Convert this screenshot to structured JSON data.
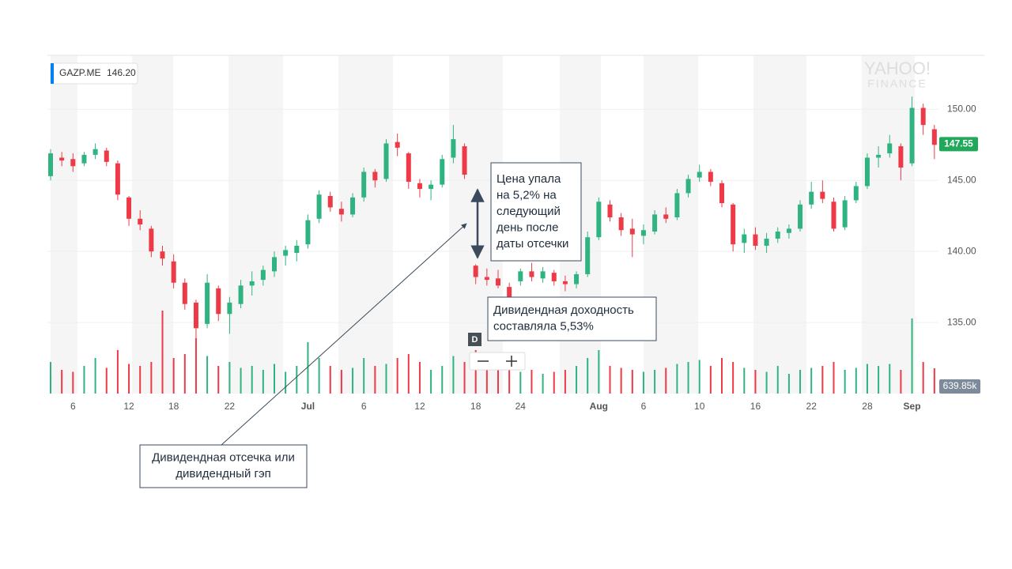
{
  "chart_data": {
    "type": "candlestick",
    "symbol": "GAZP.ME",
    "symbol_value": "146.20",
    "watermark": [
      "YAHOO!",
      "FINANCE"
    ],
    "dividend_marker": "D",
    "categories": [
      null,
      null,
      "6",
      null,
      null,
      null,
      null,
      "12",
      null,
      null,
      null,
      "18",
      null,
      null,
      null,
      null,
      "22",
      null,
      null,
      null,
      null,
      null,
      null,
      "Jul",
      null,
      null,
      null,
      null,
      "6",
      null,
      null,
      null,
      null,
      "12",
      null,
      null,
      null,
      null,
      "18",
      null,
      null,
      null,
      "24",
      null,
      null,
      null,
      null,
      null,
      null,
      "Aug",
      null,
      null,
      null,
      "6",
      null,
      null,
      null,
      null,
      "10",
      null,
      null,
      null,
      null,
      "16",
      null,
      null,
      null,
      null,
      "22",
      null,
      null,
      null,
      null,
      "28",
      null,
      null,
      null,
      "Sep",
      null,
      null
    ],
    "candles": [
      [
        145.3,
        147.2,
        145.0,
        146.9
      ],
      [
        146.6,
        147.0,
        146.0,
        146.4
      ],
      [
        146.5,
        146.9,
        145.6,
        146.0
      ],
      [
        146.2,
        147.0,
        146.0,
        146.8
      ],
      [
        146.8,
        147.6,
        146.5,
        147.2
      ],
      [
        147.1,
        147.3,
        146.0,
        146.3
      ],
      [
        146.2,
        146.4,
        143.6,
        144.0
      ],
      [
        143.8,
        143.9,
        141.8,
        142.3
      ],
      [
        142.3,
        142.9,
        141.5,
        141.9
      ],
      [
        141.6,
        141.8,
        139.6,
        140.0
      ],
      [
        140.0,
        140.4,
        139.0,
        139.5
      ],
      [
        139.3,
        139.8,
        137.4,
        137.8
      ],
      [
        137.8,
        138.1,
        135.9,
        136.3
      ],
      [
        136.4,
        136.6,
        133.6,
        134.6
      ],
      [
        134.9,
        138.4,
        134.6,
        137.8
      ],
      [
        137.4,
        137.6,
        135.1,
        135.6
      ],
      [
        135.6,
        136.8,
        134.2,
        136.4
      ],
      [
        136.3,
        138.0,
        136.0,
        137.6
      ],
      [
        137.6,
        138.6,
        136.9,
        137.9
      ],
      [
        138.0,
        139.0,
        137.6,
        138.7
      ],
      [
        138.6,
        140.0,
        138.2,
        139.6
      ],
      [
        139.7,
        140.4,
        139.0,
        140.1
      ],
      [
        139.9,
        140.8,
        139.3,
        140.4
      ],
      [
        140.5,
        142.6,
        140.2,
        142.2
      ],
      [
        142.3,
        144.3,
        142.0,
        144.0
      ],
      [
        143.9,
        144.2,
        142.8,
        143.1
      ],
      [
        143.0,
        143.5,
        142.1,
        142.6
      ],
      [
        142.6,
        144.1,
        142.4,
        143.8
      ],
      [
        143.8,
        145.9,
        143.5,
        145.6
      ],
      [
        145.6,
        145.8,
        144.5,
        145.0
      ],
      [
        145.1,
        147.9,
        144.9,
        147.6
      ],
      [
        147.7,
        148.3,
        146.7,
        147.3
      ],
      [
        146.9,
        147.0,
        144.4,
        144.9
      ],
      [
        144.8,
        145.1,
        143.8,
        144.4
      ],
      [
        144.4,
        145.0,
        143.6,
        144.7
      ],
      [
        144.7,
        146.8,
        144.5,
        146.5
      ],
      [
        146.6,
        148.9,
        146.2,
        147.9
      ],
      [
        147.4,
        147.6,
        145.1,
        145.4
      ],
      [
        139.0,
        139.1,
        137.7,
        138.2
      ],
      [
        138.2,
        138.8,
        137.6,
        138.0
      ],
      [
        138.1,
        138.7,
        137.4,
        137.6
      ],
      [
        137.5,
        137.8,
        136.4,
        136.8
      ],
      [
        137.9,
        138.8,
        137.6,
        138.6
      ],
      [
        138.6,
        139.2,
        137.9,
        138.2
      ],
      [
        138.1,
        138.9,
        137.8,
        138.6
      ],
      [
        138.5,
        138.7,
        137.6,
        137.9
      ],
      [
        137.9,
        138.3,
        137.2,
        137.7
      ],
      [
        137.7,
        138.6,
        137.4,
        138.4
      ],
      [
        138.4,
        141.4,
        138.2,
        141.0
      ],
      [
        141.0,
        143.8,
        140.8,
        143.5
      ],
      [
        143.3,
        143.6,
        142.1,
        142.4
      ],
      [
        142.4,
        142.7,
        141.1,
        141.5
      ],
      [
        141.6,
        142.3,
        139.6,
        141.2
      ],
      [
        141.1,
        141.9,
        140.5,
        141.5
      ],
      [
        141.4,
        142.9,
        141.2,
        142.6
      ],
      [
        142.6,
        143.1,
        142.0,
        142.3
      ],
      [
        142.4,
        144.4,
        142.2,
        144.1
      ],
      [
        144.1,
        145.4,
        143.8,
        145.1
      ],
      [
        145.2,
        146.1,
        144.9,
        145.6
      ],
      [
        145.6,
        145.8,
        144.6,
        144.9
      ],
      [
        144.8,
        145.0,
        143.1,
        143.4
      ],
      [
        143.3,
        143.4,
        140.0,
        140.5
      ],
      [
        140.6,
        141.6,
        139.9,
        141.2
      ],
      [
        141.2,
        141.7,
        140.1,
        140.4
      ],
      [
        140.4,
        141.3,
        139.9,
        140.9
      ],
      [
        140.9,
        141.7,
        140.6,
        141.4
      ],
      [
        141.3,
        141.9,
        140.9,
        141.6
      ],
      [
        141.6,
        143.6,
        141.4,
        143.3
      ],
      [
        143.3,
        144.9,
        143.0,
        144.2
      ],
      [
        144.2,
        145.0,
        143.4,
        143.7
      ],
      [
        143.5,
        143.8,
        141.4,
        141.6
      ],
      [
        141.7,
        143.9,
        141.5,
        143.6
      ],
      [
        143.6,
        144.9,
        143.4,
        144.6
      ],
      [
        144.6,
        146.9,
        144.4,
        146.6
      ],
      [
        146.6,
        147.4,
        145.9,
        146.8
      ],
      [
        146.9,
        148.2,
        146.6,
        147.6
      ],
      [
        147.4,
        147.6,
        145.0,
        145.9
      ],
      [
        146.2,
        150.9,
        146.0,
        150.1
      ],
      [
        150.1,
        150.4,
        148.2,
        148.9
      ],
      [
        148.6,
        148.9,
        146.5,
        147.5
      ]
    ],
    "volumes": [
      800000,
      600000,
      550000,
      700000,
      900000,
      650000,
      1100000,
      750000,
      700000,
      800000,
      2100000,
      900000,
      1000000,
      1400000,
      950000,
      700000,
      800000,
      650000,
      700000,
      600000,
      750000,
      550000,
      700000,
      1300000,
      900000,
      700000,
      600000,
      650000,
      900000,
      700000,
      750000,
      900000,
      1000000,
      800000,
      600000,
      700000,
      950000,
      800000,
      1100000,
      650000,
      600000,
      700000,
      550000,
      600000,
      500000,
      550000,
      600000,
      700000,
      900000,
      1100000,
      700000,
      650000,
      600000,
      550000,
      600000,
      650000,
      750000,
      800000,
      850000,
      700000,
      900000,
      800000,
      650000,
      600000,
      550000,
      700000,
      500000,
      600000,
      650000,
      700000,
      800000,
      600000,
      650000,
      750000,
      700000,
      750000,
      600000,
      1900000,
      800000,
      639850
    ],
    "up_color": "#2fb380",
    "down_color": "#ee3a46",
    "ylim": [
      130,
      153.8
    ],
    "yticks": [
      {
        "value": 135,
        "label": "135.00"
      },
      {
        "value": 140,
        "label": "140.00"
      },
      {
        "value": 145,
        "label": "145.00"
      },
      {
        "value": 150,
        "label": "150.00"
      }
    ],
    "vlim": [
      0,
      6000000
    ],
    "last_price": 147.55,
    "volume_label": "639.85k",
    "grid": true,
    "annotations": [
      {
        "lines": [
          "Цена упала",
          "на 5,2% на",
          "следующий",
          "день после",
          "даты отсечки"
        ]
      },
      {
        "lines": [
          "Дивидендная доходность",
          "составляла 5,53%"
        ]
      },
      {
        "lines": [
          "Дивидендная отсечка или",
          "дивидендный гэп"
        ]
      }
    ]
  }
}
